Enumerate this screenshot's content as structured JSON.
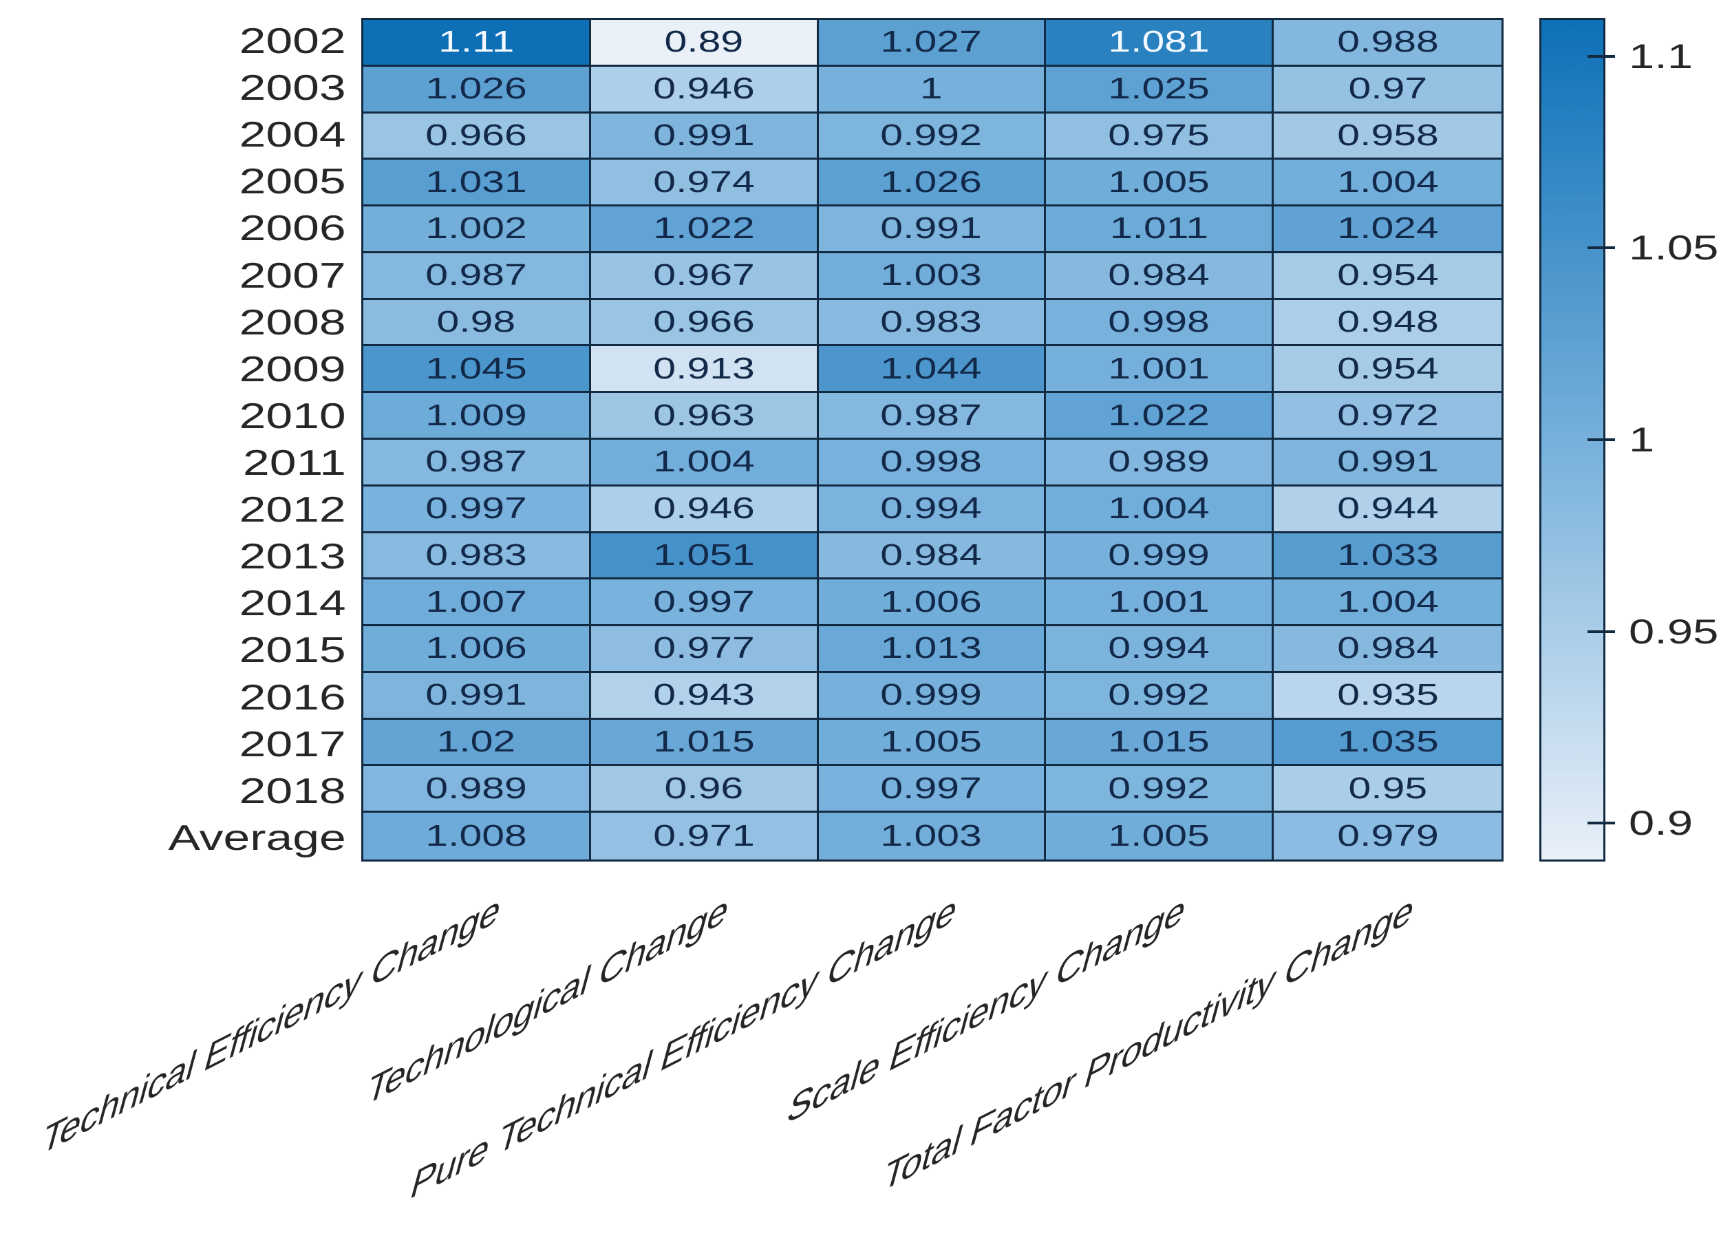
{
  "chart_data": {
    "type": "heatmap",
    "title": "",
    "xlabel": "",
    "ylabel": "",
    "grid_on": true,
    "legend_position": "colorbar-right",
    "rows": [
      "2002",
      "2003",
      "2004",
      "2005",
      "2006",
      "2007",
      "2008",
      "2009",
      "2010",
      "2011",
      "2012",
      "2013",
      "2014",
      "2015",
      "2016",
      "2017",
      "2018",
      "Average"
    ],
    "columns": [
      "Technical Efficiency Change",
      "Technological Change",
      "Pure Technical Efficiency Change",
      "Scale Efficiency Change",
      "Total Factor Productivity Change"
    ],
    "values": [
      [
        1.11,
        0.89,
        1.027,
        1.081,
        0.988
      ],
      [
        1.026,
        0.946,
        1,
        1.025,
        0.97
      ],
      [
        0.966,
        0.991,
        0.992,
        0.975,
        0.958
      ],
      [
        1.031,
        0.974,
        1.026,
        1.005,
        1.004
      ],
      [
        1.002,
        1.022,
        0.991,
        1.011,
        1.024
      ],
      [
        0.987,
        0.967,
        1.003,
        0.984,
        0.954
      ],
      [
        0.98,
        0.966,
        0.983,
        0.998,
        0.948
      ],
      [
        1.045,
        0.913,
        1.044,
        1.001,
        0.954
      ],
      [
        1.009,
        0.963,
        0.987,
        1.022,
        0.972
      ],
      [
        0.987,
        1.004,
        0.998,
        0.989,
        0.991
      ],
      [
        0.997,
        0.946,
        0.994,
        1.004,
        0.944
      ],
      [
        0.983,
        1.051,
        0.984,
        0.999,
        1.033
      ],
      [
        1.007,
        0.997,
        1.006,
        1.001,
        1.004
      ],
      [
        1.006,
        0.977,
        1.013,
        0.994,
        0.984
      ],
      [
        0.991,
        0.943,
        0.999,
        0.992,
        0.935
      ],
      [
        1.02,
        1.015,
        1.005,
        1.015,
        1.035
      ],
      [
        0.989,
        0.96,
        0.997,
        0.992,
        0.95
      ],
      [
        1.008,
        0.971,
        1.003,
        1.005,
        0.979
      ]
    ],
    "display": [
      [
        "1.11",
        "0.89",
        "1.027",
        "1.081",
        "0.988"
      ],
      [
        "1.026",
        "0.946",
        "1",
        "1.025",
        "0.97"
      ],
      [
        "0.966",
        "0.991",
        "0.992",
        "0.975",
        "0.958"
      ],
      [
        "1.031",
        "0.974",
        "1.026",
        "1.005",
        "1.004"
      ],
      [
        "1.002",
        "1.022",
        "0.991",
        "1.011",
        "1.024"
      ],
      [
        "0.987",
        "0.967",
        "1.003",
        "0.984",
        "0.954"
      ],
      [
        "0.98",
        "0.966",
        "0.983",
        "0.998",
        "0.948"
      ],
      [
        "1.045",
        "0.913",
        "1.044",
        "1.001",
        "0.954"
      ],
      [
        "1.009",
        "0.963",
        "0.987",
        "1.022",
        "0.972"
      ],
      [
        "0.987",
        "1.004",
        "0.998",
        "0.989",
        "0.991"
      ],
      [
        "0.997",
        "0.946",
        "0.994",
        "1.004",
        "0.944"
      ],
      [
        "0.983",
        "1.051",
        "0.984",
        "0.999",
        "1.033"
      ],
      [
        "1.007",
        "0.997",
        "1.006",
        "1.001",
        "1.004"
      ],
      [
        "1.006",
        "0.977",
        "1.013",
        "0.994",
        "0.984"
      ],
      [
        "0.991",
        "0.943",
        "0.999",
        "0.992",
        "0.935"
      ],
      [
        "1.02",
        "1.015",
        "1.005",
        "1.015",
        "1.035"
      ],
      [
        "0.989",
        "0.96",
        "0.997",
        "0.992",
        "0.95"
      ],
      [
        "1.008",
        "0.971",
        "1.003",
        "1.005",
        "0.979"
      ]
    ],
    "colorbar": {
      "min": 0.89,
      "max": 1.11,
      "ticks": [
        1.1,
        1.05,
        1,
        0.95,
        0.9
      ],
      "tick_labels": [
        "1.1",
        "1.05",
        "1",
        "0.95",
        "0.9"
      ]
    },
    "colors": {
      "low": "#e9f0f8",
      "mid": "#76b0db",
      "high": "#0d70b7",
      "grid_line": "#132b42",
      "cell_text_dark": "#13294a",
      "cell_text_light": "#f4f9ff",
      "axis_text": "#262626"
    }
  }
}
